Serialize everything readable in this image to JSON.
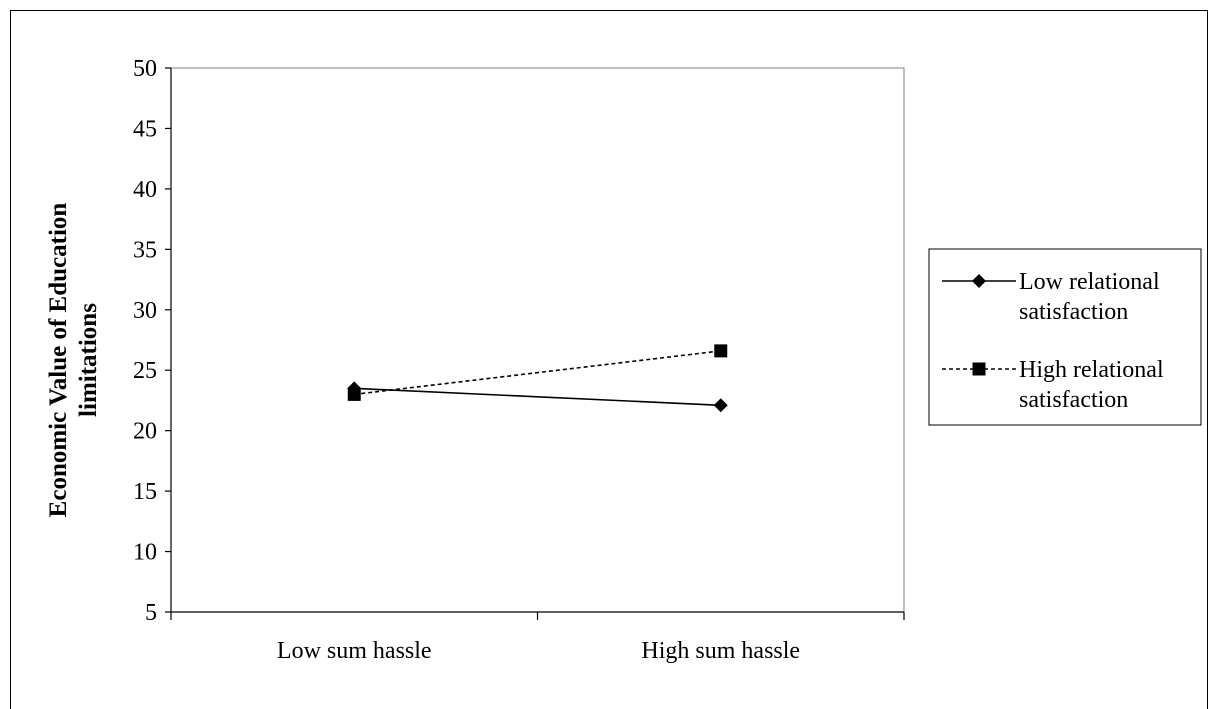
{
  "chart_data": {
    "type": "line",
    "title": "",
    "xlabel": "",
    "ylabel": [
      "Economic Value of Education",
      "limitations"
    ],
    "categories": [
      "Low sum hassle",
      "High sum hassle"
    ],
    "ylim": [
      5,
      50
    ],
    "yticks": [
      "5",
      "10",
      "15",
      "20",
      "25",
      "30",
      "35",
      "40",
      "45",
      "50"
    ],
    "grid": false,
    "legend_position": "right",
    "series": [
      {
        "name": [
          "Low relational",
          "satisfaction"
        ],
        "values": [
          23.5,
          22.1
        ],
        "marker": "diamond",
        "line_style": "solid",
        "color": "#000000"
      },
      {
        "name": [
          "High relational",
          "satisfaction"
        ],
        "values": [
          23.0,
          26.6
        ],
        "marker": "square",
        "line_style": "dashed",
        "color": "#000000"
      }
    ]
  }
}
